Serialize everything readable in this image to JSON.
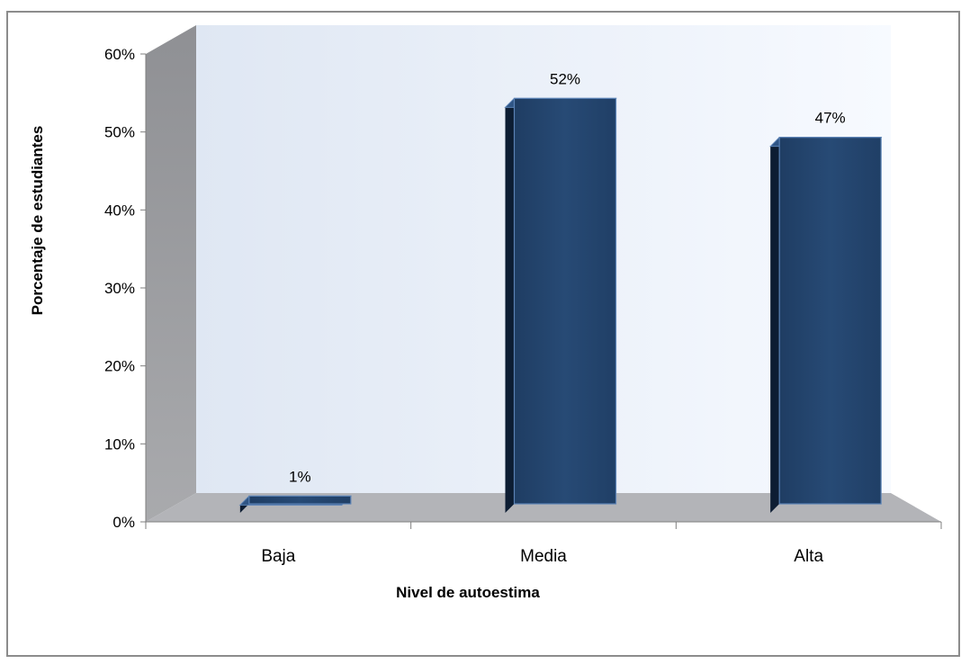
{
  "chart_data": {
    "type": "bar",
    "categories": [
      "Baja",
      "Media",
      "Alta"
    ],
    "values": [
      1,
      52,
      47
    ],
    "data_labels": [
      "1%",
      "52%",
      "47%"
    ],
    "title": "",
    "xlabel": "Nivel de autoestima",
    "ylabel": "Porcentaje de estudiantes",
    "ylim": [
      0,
      60
    ],
    "yticks": [
      "0%",
      "10%",
      "20%",
      "30%",
      "40%",
      "50%",
      "60%"
    ],
    "grid": false,
    "legend": "none",
    "style": "3d",
    "colors": {
      "bar_front": "#24466e",
      "bar_side": "#0d1d33",
      "bar_top": "#2f5585",
      "bar_outline": "#5b82b5",
      "back_wall": "#eef3fb",
      "side_wall": "#9a9a9d",
      "floor": "#b3b4b8",
      "frame_border": "#8c8c8c"
    }
  }
}
